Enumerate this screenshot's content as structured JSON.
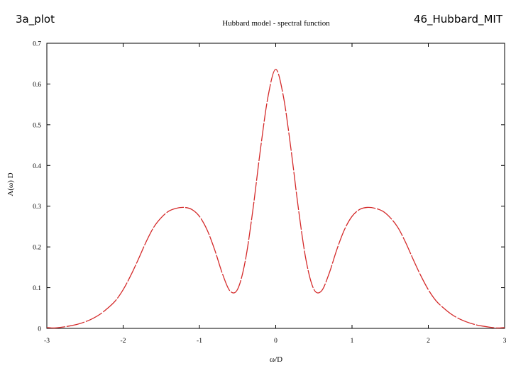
{
  "slide": {
    "left_label": "3a_plot",
    "right_label": "46_Hubbard_MIT"
  },
  "chart_data": {
    "type": "line",
    "title": "Hubbard model - spectral function",
    "xlabel": "ω/D",
    "ylabel": "A(ω) D",
    "xlim": [
      -3,
      3
    ],
    "ylim": [
      0,
      0.7
    ],
    "xticks": [
      "-3",
      "-2",
      "-1",
      "0",
      "1",
      "2",
      "3"
    ],
    "yticks": [
      "0",
      "0.1",
      "0.2",
      "0.3",
      "0.4",
      "0.5",
      "0.6",
      "0.7"
    ],
    "grid": false,
    "legend": "none",
    "series": [
      {
        "color": "#d42a2a",
        "x": [
          -3.0,
          -2.9,
          -2.8,
          -2.7,
          -2.6,
          -2.5,
          -2.4,
          -2.3,
          -2.2,
          -2.1,
          -2.0,
          -1.9,
          -1.8,
          -1.7,
          -1.6,
          -1.5,
          -1.4,
          -1.3,
          -1.2,
          -1.1,
          -1.0,
          -0.9,
          -0.8,
          -0.7,
          -0.6,
          -0.5,
          -0.4,
          -0.3,
          -0.2,
          -0.1,
          0.0,
          0.1,
          0.2,
          0.3,
          0.4,
          0.5,
          0.6,
          0.7,
          0.8,
          0.9,
          1.0,
          1.1,
          1.2,
          1.3,
          1.4,
          1.5,
          1.6,
          1.7,
          1.8,
          1.9,
          2.0,
          2.1,
          2.2,
          2.3,
          2.4,
          2.5,
          2.6,
          2.7,
          2.8,
          2.9,
          3.0
        ],
        "y": [
          0.002,
          0.001,
          0.003,
          0.006,
          0.01,
          0.016,
          0.024,
          0.035,
          0.05,
          0.068,
          0.095,
          0.13,
          0.17,
          0.212,
          0.248,
          0.272,
          0.288,
          0.295,
          0.297,
          0.292,
          0.275,
          0.242,
          0.193,
          0.135,
          0.092,
          0.096,
          0.165,
          0.29,
          0.44,
          0.57,
          0.636,
          0.57,
          0.44,
          0.29,
          0.165,
          0.096,
          0.092,
          0.135,
          0.193,
          0.242,
          0.275,
          0.292,
          0.297,
          0.295,
          0.288,
          0.272,
          0.248,
          0.212,
          0.17,
          0.13,
          0.095,
          0.068,
          0.05,
          0.035,
          0.024,
          0.016,
          0.01,
          0.006,
          0.003,
          0.001,
          0.002
        ]
      }
    ]
  }
}
